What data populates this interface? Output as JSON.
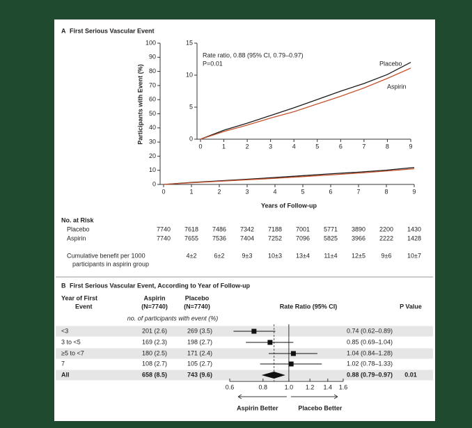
{
  "panel_a": {
    "letter": "A",
    "title": "First Serious Vascular Event"
  },
  "chart_data": [
    {
      "type": "line",
      "y_label": "Participants with Event (%)",
      "x_label": "Years of Follow-up",
      "x": [
        0,
        1,
        2,
        3,
        4,
        5,
        6,
        7,
        8,
        9
      ],
      "xlim": [
        0,
        9
      ],
      "xticks": [
        0,
        1,
        2,
        3,
        4,
        5,
        6,
        7,
        8,
        9
      ],
      "ylim": [
        0,
        100
      ],
      "yticks": [
        0,
        10,
        20,
        30,
        40,
        50,
        60,
        70,
        80,
        90,
        100
      ],
      "series": [
        {
          "color": "#1a1a1a",
          "values": [
            0,
            1.4,
            2.5,
            3.7,
            4.9,
            6.2,
            7.5,
            8.7,
            10.1,
            12.0
          ]
        },
        {
          "color": "#c4532d",
          "values": [
            0,
            1.2,
            2.2,
            3.3,
            4.3,
            5.5,
            6.7,
            8.0,
            9.5,
            11.1
          ]
        }
      ]
    },
    {
      "type": "line",
      "annotation": [
        "Rate ratio, 0.88 (95% CI, 0.79–0.97)",
        "P=0.01"
      ],
      "x": [
        0,
        1,
        2,
        3,
        4,
        5,
        6,
        7,
        8,
        9
      ],
      "xlim": [
        0,
        9
      ],
      "xticks": [
        0,
        1,
        2,
        3,
        4,
        5,
        6,
        7,
        8,
        9
      ],
      "ylim": [
        0,
        15
      ],
      "yticks": [
        0,
        5,
        10,
        15
      ],
      "series": [
        {
          "name": "Placebo",
          "color": "#1a1a1a",
          "values": [
            0,
            1.4,
            2.5,
            3.7,
            4.9,
            6.2,
            7.5,
            8.7,
            10.1,
            12.0
          ]
        },
        {
          "name": "Aspirin",
          "color": "#c4532d",
          "values": [
            0,
            1.2,
            2.2,
            3.3,
            4.3,
            5.5,
            6.7,
            8.0,
            9.5,
            11.1
          ]
        }
      ]
    },
    {
      "type": "forest",
      "x_label_left": "Aspirin Better",
      "x_label_right": "Placebo Better",
      "values": [
        0.74,
        0.85,
        1.04,
        1.02,
        0.88
      ],
      "lower": [
        0.62,
        0.69,
        0.84,
        0.78,
        0.79
      ],
      "upper": [
        0.89,
        1.04,
        1.28,
        1.33,
        0.97
      ],
      "value_labels": [
        "0.74 (0.62–0.89)",
        "0.85 (0.69–1.04)",
        "1.04 (0.84–1.28)",
        "1.02 (0.78–1.33)",
        "0.88 (0.79–0.97)"
      ],
      "xlim": [
        0.6,
        1.6
      ],
      "xticks": [
        0.6,
        0.8,
        {
          "value": 1,
          "label": "1.0"
        },
        1.2,
        1.4,
        1.6
      ],
      "log_scale": true,
      "reference": 1
    }
  ],
  "risk_table": {
    "title": "No. at Risk",
    "rows": [
      {
        "label": "Placebo",
        "values": [
          7740,
          7618,
          7486,
          7342,
          7188,
          7001,
          5771,
          3890,
          2200,
          1430
        ]
      },
      {
        "label": "Aspirin",
        "values": [
          7740,
          7655,
          7536,
          7404,
          7252,
          7096,
          5825,
          3966,
          2222,
          1428
        ]
      }
    ]
  },
  "benefit": {
    "label": [
      "Cumulative benefit per 1000",
      "participants in aspirin group"
    ],
    "values": [
      "4±2",
      "6±2",
      "9±3",
      "10±3",
      "13±4",
      "11±4",
      "12±5",
      "9±6",
      "10±7"
    ]
  },
  "panel_b": {
    "letter": "B",
    "title": "First Serious Vascular Event, According to Year of Follow-up",
    "headers": {
      "year": [
        "Year of First",
        "Event"
      ],
      "aspirin": [
        "Aspirin",
        "(N=7740)"
      ],
      "placebo": [
        "Placebo",
        "(N=7740)"
      ],
      "ratio": "Rate Ratio (95% CI)",
      "p": "P Value"
    },
    "subheader": "no. of participants with event (%)",
    "rows": [
      {
        "year": "<3",
        "aspirin": "201 (2.6)",
        "placebo": "269 (3.5)"
      },
      {
        "year": "3 to <5",
        "aspirin": "169 (2.3)",
        "placebo": "198 (2.7)"
      },
      {
        "year": "≥5 to <7",
        "aspirin": "180 (2.5)",
        "placebo": "171 (2.4)"
      },
      {
        "year": "7",
        "aspirin": "108 (2.7)",
        "placebo": "105 (2.7)"
      },
      {
        "year": "All",
        "aspirin": "658 (8.5)",
        "placebo": "743 (9.6)",
        "p": "0.01"
      }
    ]
  }
}
